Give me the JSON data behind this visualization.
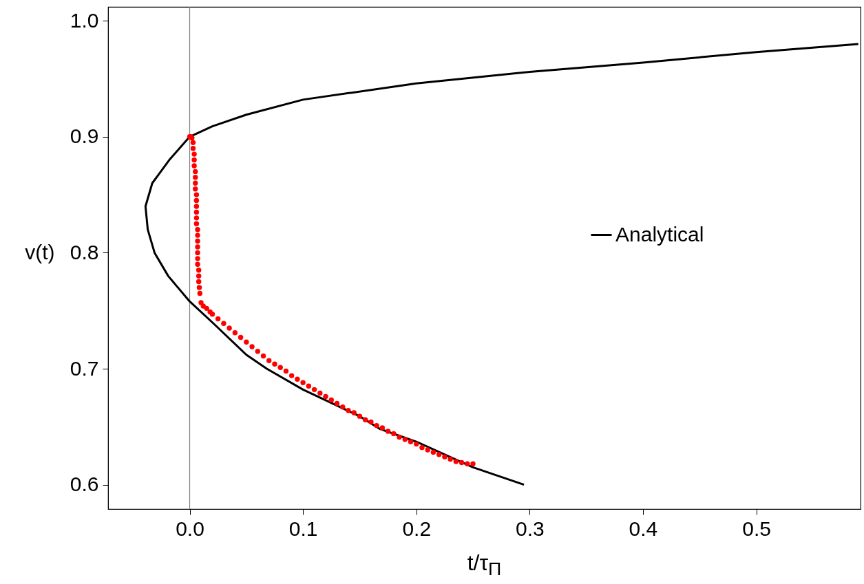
{
  "chart_data": {
    "type": "line",
    "xlabel": "t/τ$_{Π}$",
    "ylabel": "v(t)",
    "xlim": [
      -0.072,
      0.592
    ],
    "ylim": [
      0.579,
      1.012
    ],
    "xticks": [
      {
        "value": 0,
        "label": "0.0"
      },
      0.1,
      0.2,
      0.3,
      0.4,
      0.5
    ],
    "yticks": [
      0.6,
      0.7,
      0.8,
      0.9,
      {
        "value": 1,
        "label": "1.0"
      }
    ],
    "grid": false,
    "legend": "right",
    "ref_lines": [
      {
        "axis": "x",
        "value": 0,
        "color": "#808080"
      }
    ],
    "series": [
      {
        "name": "Analytical",
        "type": "line",
        "color": "#000000",
        "marker": "none",
        "x": [
          0.59,
          0.5,
          0.4,
          0.3,
          0.2,
          0.1,
          0.05,
          0.02,
          0,
          -0.018,
          -0.033,
          -0.039,
          -0.037,
          -0.031,
          -0.019,
          0,
          0.021,
          0.05,
          0.068,
          0.1,
          0.15,
          0.168,
          0.2,
          0.25,
          0.295
        ],
        "values": [
          0.98,
          0.973,
          0.964,
          0.956,
          0.946,
          0.932,
          0.919,
          0.909,
          0.9,
          0.88,
          0.86,
          0.84,
          0.82,
          0.8,
          0.78,
          0.758,
          0.739,
          0.712,
          0.7,
          0.682,
          0.659,
          0.648,
          0.637,
          0.615,
          0.6
        ]
      },
      {
        "type": "scatter",
        "color": "#ff0000",
        "marker": "circle",
        "x": [
          0,
          0.001,
          0.002,
          0.003,
          0.003,
          0.004,
          0.004,
          0.004,
          0.005,
          0.005,
          0.005,
          0.005,
          0.006,
          0.006,
          0.006,
          0.006,
          0.006,
          0.006,
          0.007,
          0.007,
          0.007,
          0.007,
          0.007,
          0.007,
          0.007,
          0.008,
          0.008,
          0.008,
          0.0085,
          0.009,
          0.01,
          0.012,
          0.015,
          0.018,
          0.02,
          0.025,
          0.03,
          0.035,
          0.04,
          0.045,
          0.05,
          0.055,
          0.06,
          0.065,
          0.07,
          0.075,
          0.08,
          0.085,
          0.09,
          0.095,
          0.1,
          0.105,
          0.11,
          0.115,
          0.12,
          0.125,
          0.13,
          0.135,
          0.14,
          0.145,
          0.15,
          0.155,
          0.16,
          0.165,
          0.17,
          0.175,
          0.18,
          0.185,
          0.19,
          0.195,
          0.2,
          0.205,
          0.21,
          0.215,
          0.22,
          0.225,
          0.23,
          0.235,
          0.24,
          0.245,
          0.25
        ],
        "values": [
          0.9,
          0.9,
          0.899,
          0.895,
          0.89,
          0.885,
          0.88,
          0.875,
          0.87,
          0.865,
          0.86,
          0.855,
          0.85,
          0.845,
          0.84,
          0.835,
          0.83,
          0.825,
          0.82,
          0.815,
          0.81,
          0.805,
          0.8,
          0.795,
          0.79,
          0.785,
          0.78,
          0.775,
          0.77,
          0.765,
          0.757,
          0.754,
          0.752,
          0.749,
          0.747,
          0.743,
          0.739,
          0.735,
          0.731,
          0.727,
          0.723,
          0.719,
          0.715,
          0.711,
          0.707,
          0.704,
          0.701,
          0.698,
          0.694,
          0.691,
          0.688,
          0.685,
          0.682,
          0.679,
          0.676,
          0.673,
          0.67,
          0.667,
          0.664,
          0.662,
          0.659,
          0.656,
          0.654,
          0.651,
          0.649,
          0.646,
          0.644,
          0.641,
          0.639,
          0.637,
          0.635,
          0.632,
          0.63,
          0.628,
          0.626,
          0.624,
          0.622,
          0.62,
          0.619,
          0.618,
          0.618
        ]
      }
    ]
  }
}
